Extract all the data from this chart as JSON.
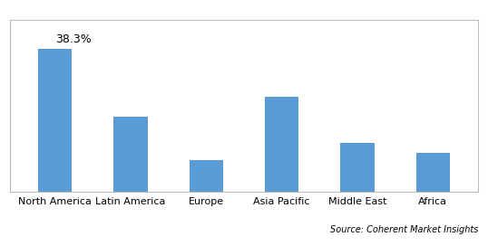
{
  "categories": [
    "North America",
    "Latin America",
    "Europe",
    "Asia Pacific",
    "Middle East",
    "Africa"
  ],
  "values": [
    38.3,
    20.0,
    8.5,
    25.5,
    13.0,
    10.5
  ],
  "bar_color": "#5b9bd5",
  "annotation_label": "38.3%",
  "annotation_index": 0,
  "source_text": "Source: Coherent Market Insights",
  "ylim": [
    0,
    46
  ],
  "background_color": "#ffffff",
  "grid_color": "#d0d0d0",
  "label_fontsize": 8.0,
  "annotation_fontsize": 9.0,
  "source_fontsize": 7.0,
  "bar_width": 0.45
}
